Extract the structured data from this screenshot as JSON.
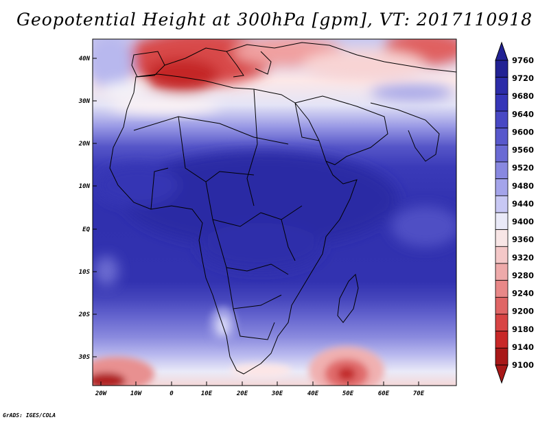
{
  "title": "Geopotential Height at 300hPa [gpm], VT: 2017110918",
  "map": {
    "lon_range": [
      -23,
      80
    ],
    "lat_range": [
      -37,
      45
    ],
    "lat_labels": [
      "40N",
      "30N",
      "20N",
      "10N",
      "EQ",
      "10S",
      "20S",
      "30S"
    ],
    "lon_labels": [
      "20W",
      "10W",
      "0",
      "10E",
      "20E",
      "30E",
      "40E",
      "50E",
      "60E",
      "70E"
    ]
  },
  "colorbar": {
    "levels": [
      "9760",
      "9720",
      "9680",
      "9640",
      "9600",
      "9560",
      "9520",
      "9480",
      "9440",
      "9400",
      "9360",
      "9320",
      "9280",
      "9240",
      "9200",
      "9180",
      "9140",
      "9100"
    ],
    "colors_top_to_bottom": [
      "#222294",
      "#2c2ca8",
      "#3636b8",
      "#4848c4",
      "#5858cc",
      "#6a6ad4",
      "#8888e0",
      "#a4a4ea",
      "#c8c8f4",
      "#eaeaf8",
      "#f8e6e6",
      "#f4c8c8",
      "#eeaaaa",
      "#e88888",
      "#e06666",
      "#d84444",
      "#c82828",
      "#a81818"
    ]
  },
  "credit": "GrADS: IGES/COLA"
}
